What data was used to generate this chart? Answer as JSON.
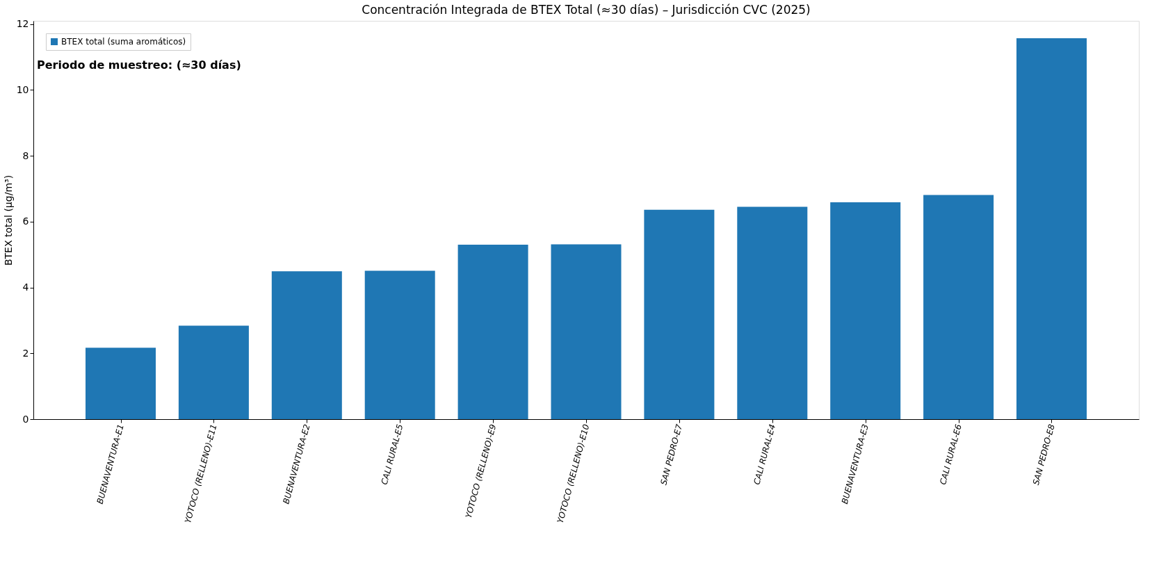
{
  "chart_data": {
    "type": "bar",
    "title": "Concentración Integrada de BTEX Total (≈30 días) – Jurisdicción CVC (2025)",
    "ylabel": "BTEX total (µg/m³)",
    "categories": [
      "BUENAVENTURA-E1",
      "YOTOCO (RELLENO)-E11",
      "BUENAVENTURA-E2",
      "CALI RURAL-E5",
      "YOTOCO (RELLENO)-E9",
      "YOTOCO (RELLENO)-E10",
      "SAN PEDRO-E7",
      "CALI RURAL-E4",
      "BUENAVENTURA-E3",
      "CALI RURAL-E6",
      "SAN PEDRO-E8"
    ],
    "series": [
      {
        "name": "BTEX total (suma aromáticos)",
        "color": "#1f77b4",
        "values": [
          2.17,
          2.84,
          4.49,
          4.51,
          5.3,
          5.31,
          6.36,
          6.45,
          6.59,
          6.81,
          11.57
        ]
      }
    ],
    "ylim": [
      0,
      12.1
    ],
    "yticks": [
      0,
      2,
      4,
      6,
      8,
      10,
      12
    ],
    "annotations": [
      "Periodo de muestreo: (≈30 días)"
    ],
    "legend": "top left",
    "grid": false
  }
}
